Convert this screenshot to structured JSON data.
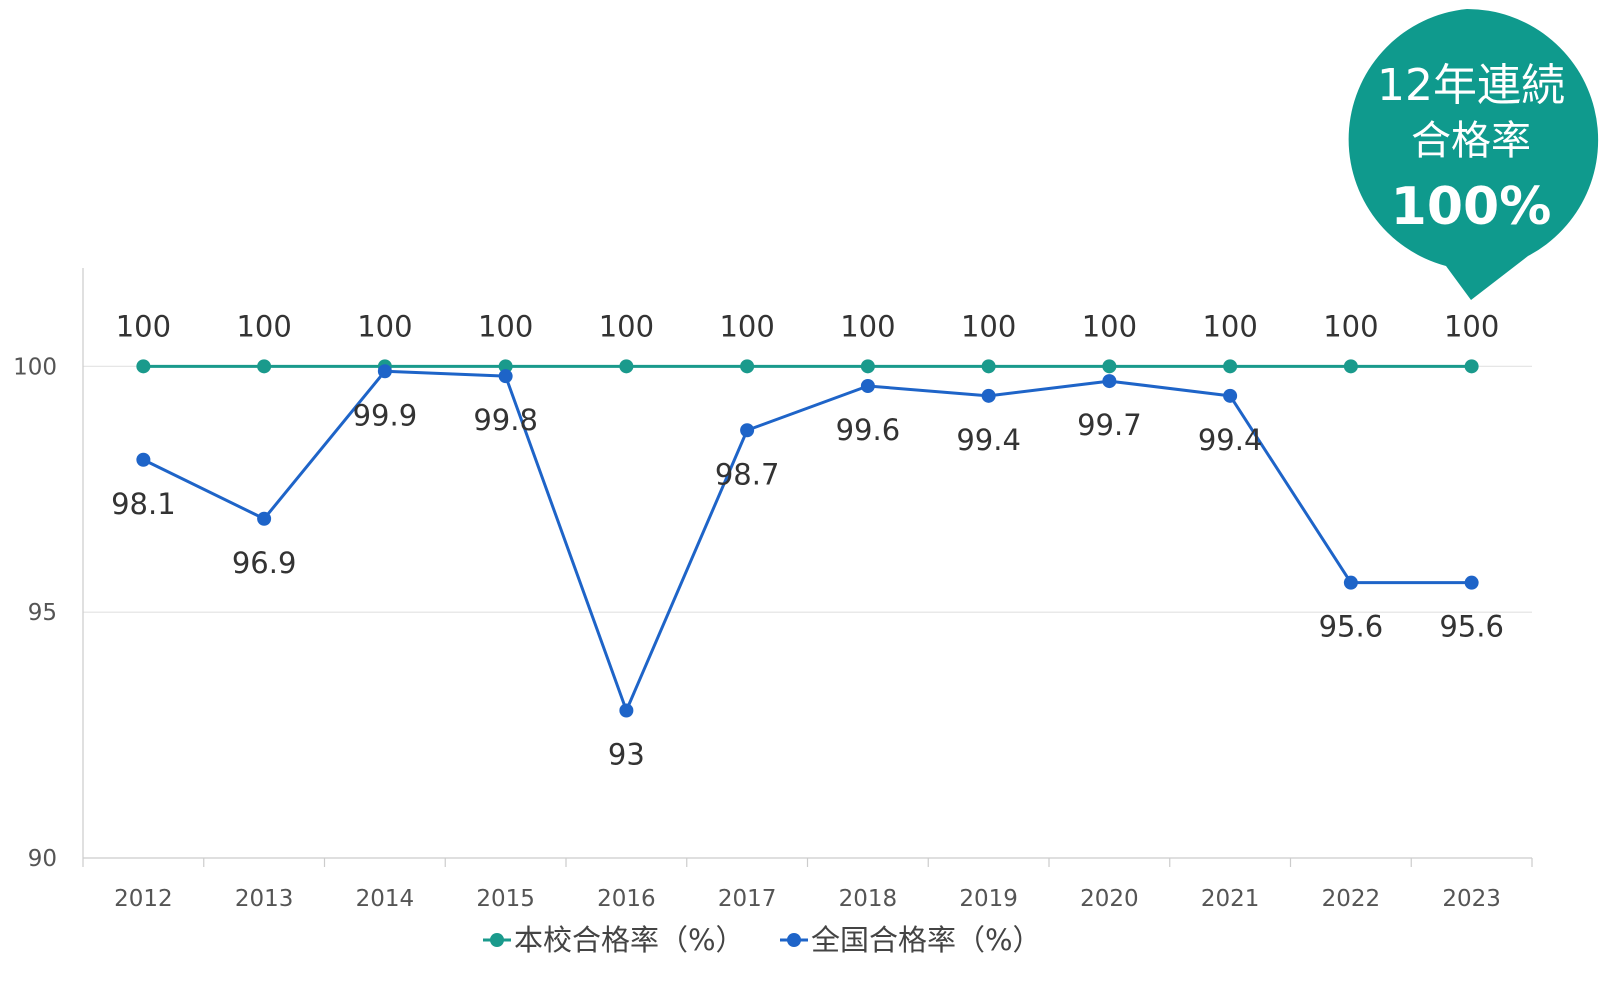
{
  "colors": {
    "school": "#1a9a8c",
    "national": "#1e64c8",
    "grid": "#e2e2e2",
    "badge": "#0f9a8d"
  },
  "badge": {
    "line1": "12年連続",
    "line2": "合格率",
    "line3": "100%"
  },
  "chart_data": {
    "type": "line",
    "x": [
      "2012",
      "2013",
      "2014",
      "2015",
      "2016",
      "2017",
      "2018",
      "2019",
      "2020",
      "2021",
      "2022",
      "2023"
    ],
    "series": [
      {
        "name": "本校合格率（%）",
        "values": [
          100,
          100,
          100,
          100,
          100,
          100,
          100,
          100,
          100,
          100,
          100,
          100
        ]
      },
      {
        "name": "全国合格率（%）",
        "values": [
          98.1,
          96.9,
          99.9,
          99.8,
          93,
          98.7,
          99.6,
          99.4,
          99.7,
          99.4,
          95.6,
          95.6
        ]
      }
    ],
    "data_labels": {
      "school": [
        "100",
        "100",
        "100",
        "100",
        "100",
        "100",
        "100",
        "100",
        "100",
        "100",
        "100",
        "100"
      ],
      "national": [
        "98.1",
        "96.9",
        "99.9",
        "99.8",
        "93",
        "98.7",
        "99.6",
        "99.4",
        "99.7",
        "99.4",
        "95.6",
        "95.6"
      ]
    },
    "yticks": [
      "90",
      "95",
      "100"
    ],
    "ylim": [
      90,
      102
    ],
    "grid": true,
    "legend_position": "bottom",
    "title": "",
    "xlabel": "",
    "ylabel": ""
  }
}
